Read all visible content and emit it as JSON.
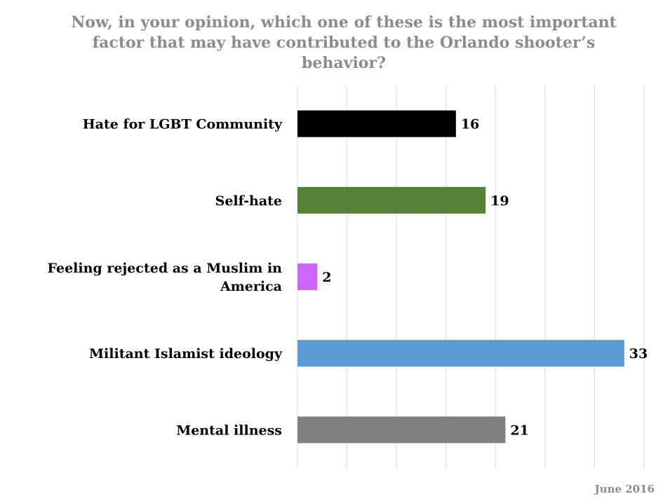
{
  "title_lines": [
    "Now, in your opinion, which one of these is the most important",
    "factor that may have contributed to the Orlando shooter’s",
    "behavior?"
  ],
  "footer": "June 2016",
  "chart_data": {
    "type": "bar",
    "orientation": "horizontal",
    "title": "Now, in your opinion, which one of these is the most important factor that may have contributed to the Orlando shooter’s behavior?",
    "categories": [
      [
        "Hate for LGBT Community"
      ],
      [
        "Self-hate"
      ],
      [
        "Feeling rejected as a Muslim in",
        "America"
      ],
      [
        "Militant Islamist ideology"
      ],
      [
        "Mental illness"
      ]
    ],
    "values": [
      16,
      19,
      2,
      33,
      21
    ],
    "colors": [
      "#000000",
      "#538135",
      "#cc66ff",
      "#5b9bd5",
      "#808080"
    ],
    "xlim": [
      0,
      35
    ],
    "grid": true,
    "legend": "none"
  }
}
